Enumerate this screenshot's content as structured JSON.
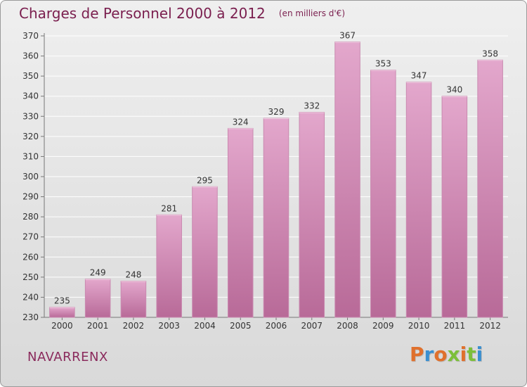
{
  "header": {
    "title": "Charges de Personnel 2000 à 2012",
    "subtitle": "(en milliers d'€)"
  },
  "footer": {
    "city": "NAVARRENX",
    "logo_text": "Proxiti"
  },
  "colors": {
    "bar_top": "#e3a7cc",
    "bar_bottom": "#b86a98",
    "grid": "#ffffff",
    "title": "#7a1e4e",
    "logo_letters": [
      "#e0702c",
      "#3a8fd0",
      "#e0702c",
      "#7cbf3a",
      "#e0702c",
      "#7cbf3a",
      "#3a8fd0"
    ]
  },
  "chart_data": {
    "type": "bar",
    "title": "Charges de Personnel 2000 à 2012",
    "subtitle": "(en milliers d'€)",
    "categories": [
      "2000",
      "2001",
      "2002",
      "2003",
      "2004",
      "2005",
      "2006",
      "2007",
      "2008",
      "2009",
      "2010",
      "2011",
      "2012"
    ],
    "values": [
      235,
      249,
      248,
      281,
      295,
      324,
      329,
      332,
      367,
      353,
      347,
      340,
      358
    ],
    "ylim": [
      230,
      370
    ],
    "yticks": [
      230,
      240,
      250,
      260,
      270,
      280,
      290,
      300,
      310,
      320,
      330,
      340,
      350,
      360,
      370
    ],
    "grid": true,
    "data_labels": true
  }
}
